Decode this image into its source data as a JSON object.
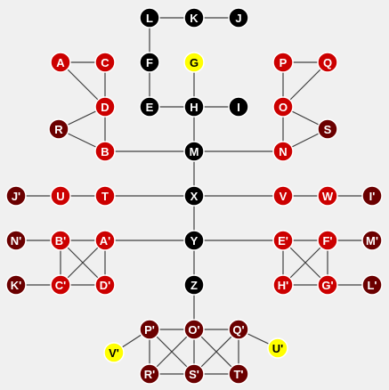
{
  "colors": {
    "background": "#f0f0f0",
    "edge": "#404040",
    "node_stroke": "#ffffff",
    "palette": {
      "black": "#000000",
      "red": "#cc0000",
      "darkred": "#6b0000",
      "yellow": "#ffff00"
    },
    "label_light": "#ffffff",
    "label_dark": "#000000"
  },
  "nodes": [
    {
      "id": "L",
      "label": "L",
      "color": "black"
    },
    {
      "id": "K",
      "label": "K",
      "color": "black"
    },
    {
      "id": "J",
      "label": "J",
      "color": "black"
    },
    {
      "id": "F",
      "label": "F",
      "color": "black"
    },
    {
      "id": "G",
      "label": "G",
      "color": "yellow"
    },
    {
      "id": "E",
      "label": "E",
      "color": "black"
    },
    {
      "id": "H",
      "label": "H",
      "color": "black"
    },
    {
      "id": "I",
      "label": "I",
      "color": "black"
    },
    {
      "id": "A",
      "label": "A",
      "color": "red"
    },
    {
      "id": "C",
      "label": "C",
      "color": "red"
    },
    {
      "id": "D",
      "label": "D",
      "color": "red"
    },
    {
      "id": "R",
      "label": "R",
      "color": "darkred"
    },
    {
      "id": "B",
      "label": "B",
      "color": "red"
    },
    {
      "id": "M",
      "label": "M",
      "color": "black"
    },
    {
      "id": "P",
      "label": "P",
      "color": "red"
    },
    {
      "id": "Q",
      "label": "Q",
      "color": "red"
    },
    {
      "id": "O",
      "label": "O",
      "color": "red"
    },
    {
      "id": "S",
      "label": "S",
      "color": "darkred"
    },
    {
      "id": "N",
      "label": "N",
      "color": "red"
    },
    {
      "id": "J'",
      "label": "J'",
      "color": "darkred"
    },
    {
      "id": "U",
      "label": "U",
      "color": "red"
    },
    {
      "id": "T",
      "label": "T",
      "color": "red"
    },
    {
      "id": "X",
      "label": "X",
      "color": "black"
    },
    {
      "id": "V",
      "label": "V",
      "color": "red"
    },
    {
      "id": "W",
      "label": "W",
      "color": "red"
    },
    {
      "id": "I'",
      "label": "I'",
      "color": "darkred"
    },
    {
      "id": "N'",
      "label": "N'",
      "color": "darkred"
    },
    {
      "id": "B'",
      "label": "B'",
      "color": "red"
    },
    {
      "id": "A'",
      "label": "A'",
      "color": "red"
    },
    {
      "id": "Y",
      "label": "Y",
      "color": "black"
    },
    {
      "id": "E'",
      "label": "E'",
      "color": "red"
    },
    {
      "id": "F'",
      "label": "F'",
      "color": "red"
    },
    {
      "id": "M'",
      "label": "M'",
      "color": "darkred"
    },
    {
      "id": "K'",
      "label": "K'",
      "color": "darkred"
    },
    {
      "id": "C'",
      "label": "C'",
      "color": "red"
    },
    {
      "id": "D'",
      "label": "D'",
      "color": "red"
    },
    {
      "id": "Z",
      "label": "Z",
      "color": "black"
    },
    {
      "id": "H'",
      "label": "H'",
      "color": "red"
    },
    {
      "id": "G'",
      "label": "G'",
      "color": "red"
    },
    {
      "id": "L'",
      "label": "L'",
      "color": "darkred"
    },
    {
      "id": "P'",
      "label": "P'",
      "color": "darkred"
    },
    {
      "id": "O'",
      "label": "O'",
      "color": "darkred"
    },
    {
      "id": "Q'",
      "label": "Q'",
      "color": "darkred"
    },
    {
      "id": "V'",
      "label": "V'",
      "color": "yellow"
    },
    {
      "id": "U'",
      "label": "U'",
      "color": "yellow"
    },
    {
      "id": "R'",
      "label": "R'",
      "color": "darkred"
    },
    {
      "id": "S'",
      "label": "S'",
      "color": "darkred"
    },
    {
      "id": "T'",
      "label": "T'",
      "color": "darkred"
    }
  ],
  "edges": [
    [
      "L",
      "K"
    ],
    [
      "K",
      "J"
    ],
    [
      "L",
      "F"
    ],
    [
      "F",
      "E"
    ],
    [
      "E",
      "H"
    ],
    [
      "H",
      "I"
    ],
    [
      "G",
      "H"
    ],
    [
      "H",
      "M"
    ],
    [
      "A",
      "C"
    ],
    [
      "C",
      "D"
    ],
    [
      "A",
      "D"
    ],
    [
      "D",
      "R"
    ],
    [
      "D",
      "B"
    ],
    [
      "R",
      "B"
    ],
    [
      "B",
      "M"
    ],
    [
      "P",
      "Q"
    ],
    [
      "P",
      "O"
    ],
    [
      "Q",
      "O"
    ],
    [
      "O",
      "S"
    ],
    [
      "O",
      "N"
    ],
    [
      "S",
      "N"
    ],
    [
      "N",
      "M"
    ],
    [
      "M",
      "X"
    ],
    [
      "J'",
      "U"
    ],
    [
      "U",
      "T"
    ],
    [
      "T",
      "X"
    ],
    [
      "X",
      "V"
    ],
    [
      "V",
      "W"
    ],
    [
      "W",
      "I'"
    ],
    [
      "X",
      "Y"
    ],
    [
      "N'",
      "B'"
    ],
    [
      "B'",
      "A'"
    ],
    [
      "A'",
      "Y"
    ],
    [
      "Y",
      "E'"
    ],
    [
      "E'",
      "F'"
    ],
    [
      "F'",
      "M'"
    ],
    [
      "B'",
      "C'"
    ],
    [
      "B'",
      "D'"
    ],
    [
      "A'",
      "C'"
    ],
    [
      "A'",
      "D'"
    ],
    [
      "C'",
      "D'"
    ],
    [
      "K'",
      "C'"
    ],
    [
      "E'",
      "H'"
    ],
    [
      "E'",
      "G'"
    ],
    [
      "F'",
      "H'"
    ],
    [
      "F'",
      "G'"
    ],
    [
      "H'",
      "G'"
    ],
    [
      "G'",
      "L'"
    ],
    [
      "Y",
      "Z"
    ],
    [
      "Z",
      "O'"
    ],
    [
      "P'",
      "O'"
    ],
    [
      "O'",
      "Q'"
    ],
    [
      "P'",
      "R'"
    ],
    [
      "P'",
      "S'"
    ],
    [
      "O'",
      "R'"
    ],
    [
      "O'",
      "S'"
    ],
    [
      "O'",
      "T'"
    ],
    [
      "Q'",
      "S'"
    ],
    [
      "Q'",
      "T'"
    ],
    [
      "R'",
      "S'"
    ],
    [
      "S'",
      "T'"
    ],
    [
      "P'",
      "V'"
    ],
    [
      "Q'",
      "U'"
    ]
  ]
}
